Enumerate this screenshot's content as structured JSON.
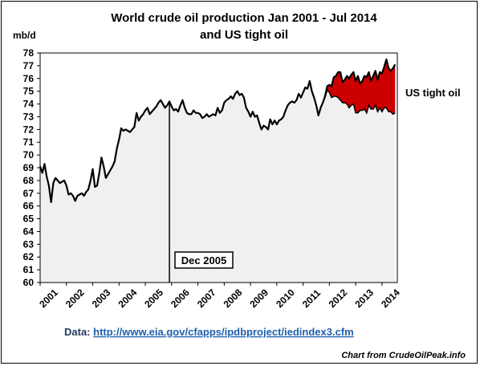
{
  "chart_data": {
    "type": "area",
    "title_line1": "World crude oil production Jan 2001 - Jul 2014",
    "title_line2": "and US tight oil",
    "ylabel": "mb/d",
    "ylim": [
      60,
      78
    ],
    "yticks": [
      60,
      61,
      62,
      63,
      64,
      65,
      66,
      67,
      68,
      69,
      70,
      71,
      72,
      73,
      74,
      75,
      76,
      77,
      78
    ],
    "xlim": [
      2001,
      2014.583
    ],
    "xtick_labels": [
      "2001",
      "2002",
      "2003",
      "2004",
      "2005",
      "2006",
      "2007",
      "2008",
      "2009",
      "2010",
      "2011",
      "2012",
      "2013",
      "2014"
    ],
    "grid": false,
    "annotations": {
      "marker_label": "Dec 2005",
      "marker_x": 2005.917,
      "series_label": "US tight oil"
    },
    "colors": {
      "area_fill": "#f0f0f0",
      "tight_oil": "#cc0000",
      "line": "#000000"
    },
    "series": [
      {
        "name": "World crude oil production",
        "x": [
          2001.0,
          2001.083,
          2001.167,
          2001.25,
          2001.333,
          2001.417,
          2001.5,
          2001.583,
          2001.667,
          2001.75,
          2001.833,
          2001.917,
          2002.0,
          2002.083,
          2002.167,
          2002.25,
          2002.333,
          2002.417,
          2002.5,
          2002.583,
          2002.667,
          2002.75,
          2002.833,
          2002.917,
          2003.0,
          2003.083,
          2003.167,
          2003.25,
          2003.333,
          2003.417,
          2003.5,
          2003.583,
          2003.667,
          2003.75,
          2003.833,
          2003.917,
          2004.0,
          2004.083,
          2004.167,
          2004.25,
          2004.333,
          2004.417,
          2004.5,
          2004.583,
          2004.667,
          2004.75,
          2004.833,
          2004.917,
          2005.0,
          2005.083,
          2005.167,
          2005.25,
          2005.333,
          2005.417,
          2005.5,
          2005.583,
          2005.667,
          2005.75,
          2005.833,
          2005.917,
          2006.0,
          2006.083,
          2006.167,
          2006.25,
          2006.333,
          2006.417,
          2006.5,
          2006.583,
          2006.667,
          2006.75,
          2006.833,
          2006.917,
          2007.0,
          2007.083,
          2007.167,
          2007.25,
          2007.333,
          2007.417,
          2007.5,
          2007.583,
          2007.667,
          2007.75,
          2007.833,
          2007.917,
          2008.0,
          2008.083,
          2008.167,
          2008.25,
          2008.333,
          2008.417,
          2008.5,
          2008.583,
          2008.667,
          2008.75,
          2008.833,
          2008.917,
          2009.0,
          2009.083,
          2009.167,
          2009.25,
          2009.333,
          2009.417,
          2009.5,
          2009.583,
          2009.667,
          2009.75,
          2009.833,
          2009.917,
          2010.0,
          2010.083,
          2010.167,
          2010.25,
          2010.333,
          2010.417,
          2010.5,
          2010.583,
          2010.667,
          2010.75,
          2010.833,
          2010.917,
          2011.0,
          2011.083,
          2011.167,
          2011.25,
          2011.333,
          2011.417,
          2011.5,
          2011.583,
          2011.667,
          2011.75,
          2011.833,
          2011.917,
          2012.0,
          2012.083,
          2012.167,
          2012.25,
          2012.333,
          2012.417,
          2012.5,
          2012.583,
          2012.667,
          2012.75,
          2012.833,
          2012.917,
          2013.0,
          2013.083,
          2013.167,
          2013.25,
          2013.333,
          2013.417,
          2013.5,
          2013.583,
          2013.667,
          2013.75,
          2013.833,
          2013.917,
          2014.0,
          2014.083,
          2014.167,
          2014.25,
          2014.333,
          2014.417,
          2014.5
        ],
        "values": [
          69.1,
          68.6,
          69.3,
          68.3,
          67.6,
          66.3,
          67.8,
          68.2,
          68.0,
          67.8,
          67.9,
          68.0,
          67.6,
          66.9,
          67.0,
          66.8,
          66.4,
          66.8,
          66.9,
          67.0,
          66.8,
          67.1,
          67.3,
          68.0,
          68.9,
          67.5,
          67.6,
          68.6,
          69.8,
          69.1,
          68.2,
          68.5,
          68.8,
          69.1,
          69.5,
          70.5,
          71.2,
          72.1,
          71.9,
          72.0,
          71.9,
          71.8,
          72.0,
          72.2,
          73.3,
          72.7,
          73.0,
          73.2,
          73.5,
          73.7,
          73.2,
          73.4,
          73.6,
          73.8,
          74.1,
          74.3,
          74.0,
          73.7,
          73.9,
          74.2,
          73.8,
          73.5,
          73.6,
          73.4,
          73.9,
          74.3,
          73.7,
          73.3,
          73.2,
          73.2,
          73.5,
          73.3,
          73.3,
          73.2,
          72.9,
          73.0,
          73.2,
          73.0,
          73.1,
          73.2,
          73.1,
          73.7,
          73.3,
          73.5,
          74.1,
          74.3,
          74.4,
          74.6,
          74.4,
          74.8,
          75.0,
          74.7,
          74.8,
          74.5,
          73.7,
          73.4,
          73.0,
          73.4,
          73.0,
          73.1,
          72.5,
          72.0,
          72.3,
          72.2,
          72.0,
          72.8,
          72.4,
          72.7,
          72.4,
          72.7,
          72.8,
          73.0,
          73.5,
          73.9,
          74.1,
          74.2,
          74.1,
          74.3,
          74.8,
          74.5,
          74.9,
          75.3,
          75.2,
          75.8,
          75.0,
          74.5,
          73.9,
          73.1,
          73.7,
          74.1,
          74.6,
          75.4,
          75.5,
          75.4,
          76.1,
          76.2,
          76.5,
          76.5,
          75.7,
          75.9,
          76.2,
          76.0,
          76.3,
          76.5,
          75.8,
          76.2,
          75.6,
          75.8,
          76.2,
          76.1,
          76.5,
          75.8,
          76.2,
          76.6,
          75.9,
          76.5,
          76.4,
          76.9,
          77.5,
          76.8,
          76.6,
          76.8,
          77.1
        ]
      },
      {
        "name": "US tight oil",
        "x": [
          2011.75,
          2011.833,
          2011.917,
          2012.0,
          2012.083,
          2012.167,
          2012.25,
          2012.333,
          2012.417,
          2012.5,
          2012.583,
          2012.667,
          2012.75,
          2012.833,
          2012.917,
          2013.0,
          2013.083,
          2013.167,
          2013.25,
          2013.333,
          2013.417,
          2013.5,
          2013.583,
          2013.667,
          2013.75,
          2013.833,
          2013.917,
          2014.0,
          2014.083,
          2014.167,
          2014.25,
          2014.333,
          2014.417,
          2014.5
        ],
        "values": [
          0.0,
          0.1,
          0.3,
          0.6,
          0.9,
          1.5,
          1.6,
          2.0,
          2.2,
          1.6,
          1.8,
          2.2,
          2.3,
          2.4,
          2.5,
          2.5,
          2.9,
          2.1,
          2.3,
          2.6,
          2.8,
          2.6,
          2.2,
          2.6,
          2.7,
          2.5,
          2.8,
          3.0,
          3.2,
          3.8,
          3.4,
          3.2,
          3.6,
          3.8
        ]
      }
    ]
  },
  "source": {
    "label": "Data: ",
    "link": "http://www.eia.gov/cfapps/ipdbproject/iedindex3.cfm"
  },
  "credit": "Chart from CrudeOilPeak.info"
}
